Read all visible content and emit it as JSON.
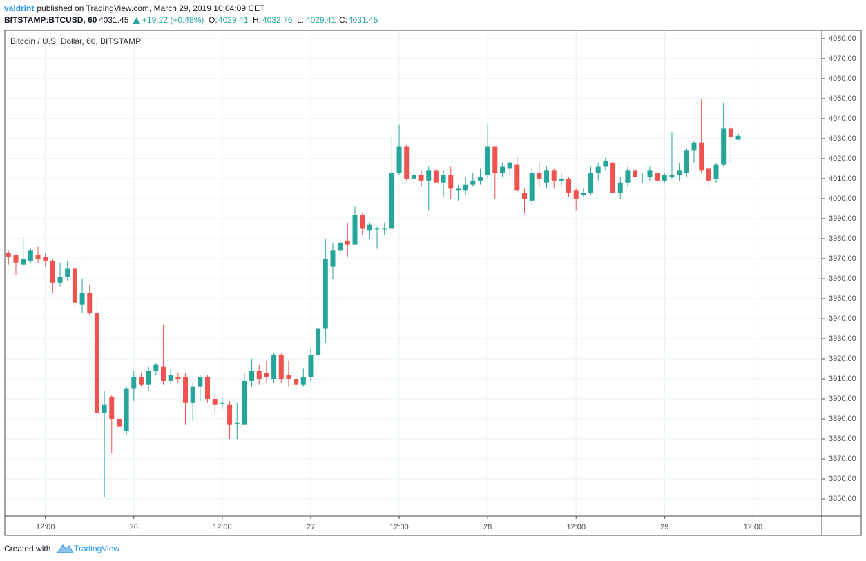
{
  "header": {
    "user": "valdrint",
    "published": "published on TradingView.com, March 29, 2019 10:04:09 CET",
    "symbol": "BITSTAMP:BTCUSD, 60",
    "last": "4031.45",
    "change": "+19.22 (+0.48%)",
    "open_label": "O:",
    "open": "4029.41",
    "high_label": "H:",
    "high": "4032.76",
    "low_label": "L:",
    "low": "4029.41",
    "close_label": "C:",
    "close": "4031.45"
  },
  "footer": {
    "created": "Created with",
    "brand": "TradingView"
  },
  "chart_data": {
    "type": "candlestick",
    "title": "Bitcoin / U.S. Dollar, 60, BITSTAMP",
    "up_color": "#26a69a",
    "down_color": "#ef5350",
    "grid": true,
    "x": [
      "25 07:00",
      "25 08:00",
      "25 09:00",
      "25 10:00",
      "25 11:00",
      "25 12:00",
      "25 13:00",
      "25 14:00",
      "25 15:00",
      "25 16:00",
      "25 17:00",
      "25 18:00",
      "25 19:00",
      "25 20:00",
      "25 21:00",
      "25 22:00",
      "25 23:00",
      "26 00:00",
      "26 01:00",
      "26 02:00",
      "26 03:00",
      "26 04:00",
      "26 05:00",
      "26 06:00",
      "26 07:00",
      "26 08:00",
      "26 09:00",
      "26 10:00",
      "26 11:00",
      "26 12:00",
      "26 13:00",
      "26 14:00",
      "26 15:00",
      "26 16:00",
      "26 17:00",
      "26 18:00",
      "26 19:00",
      "26 20:00",
      "26 21:00",
      "26 22:00",
      "26 23:00",
      "27 00:00",
      "27 01:00",
      "27 02:00",
      "27 03:00",
      "27 04:00",
      "27 05:00",
      "27 06:00",
      "27 07:00",
      "27 08:00",
      "27 09:00",
      "27 10:00",
      "27 11:00",
      "27 12:00",
      "27 13:00",
      "27 14:00",
      "27 15:00",
      "27 16:00",
      "27 17:00",
      "27 18:00",
      "27 19:00",
      "27 20:00",
      "27 21:00",
      "27 22:00",
      "27 23:00",
      "28 00:00",
      "28 01:00",
      "28 02:00",
      "28 03:00",
      "28 04:00",
      "28 05:00",
      "28 06:00",
      "28 07:00",
      "28 08:00",
      "28 09:00",
      "28 10:00",
      "28 11:00",
      "28 12:00",
      "28 13:00",
      "28 14:00",
      "28 15:00",
      "28 16:00",
      "28 17:00",
      "28 18:00",
      "28 19:00",
      "28 20:00",
      "28 21:00",
      "28 22:00",
      "28 23:00",
      "29 00:00",
      "29 01:00",
      "29 02:00",
      "29 03:00",
      "29 04:00",
      "29 05:00",
      "29 06:00",
      "29 07:00",
      "29 08:00",
      "29 09:00",
      "29 10:00"
    ],
    "open": [
      3973,
      3972,
      3967,
      3969,
      3972,
      3971,
      3969,
      3958,
      3961,
      3965,
      3947,
      3953,
      3943,
      3893,
      3901,
      3890,
      3884,
      3905,
      3911,
      3907,
      3914,
      3916,
      3909,
      3911,
      3911,
      3898,
      3906,
      3911,
      3900,
      3898,
      3897,
      3888,
      3887,
      3909,
      3914,
      3913,
      3910,
      3922,
      3912,
      3910,
      3907,
      3911,
      3922,
      3935,
      3966,
      3974,
      3979,
      3977,
      3992,
      3984,
      3985,
      3985,
      3985,
      4013,
      4026,
      4010,
      4012,
      4009,
      4014,
      4008,
      4012,
      4004,
      4004,
      4007,
      4009,
      4012,
      4026,
      4013,
      4015,
      4017,
      4003,
      3999,
      4013,
      4008,
      4014,
      4009,
      4010,
      4004,
      4002,
      4003,
      4013,
      4016,
      4018,
      4003,
      4008,
      4014,
      4011,
      4011,
      4013,
      4009,
      4011,
      4012,
      4013,
      4024,
      4028,
      4015,
      4010,
      4017,
      4035,
      4029.41
    ],
    "high": [
      3974,
      3972,
      3981,
      3975,
      3976,
      3973,
      3970,
      3968,
      3969,
      3969,
      3960,
      3957,
      3950,
      3904,
      3902,
      3891,
      3906,
      3914,
      3913,
      3916,
      3918,
      3937,
      3915,
      3913,
      3913,
      3908,
      3912,
      3912,
      3902,
      3901,
      3899,
      3898,
      3913,
      3920,
      3917,
      3919,
      3923,
      3923,
      3919,
      3912,
      3915,
      3925,
      3935,
      3980,
      3978,
      3980,
      3988,
      3996,
      3993,
      3988,
      3986,
      3988,
      4031,
      4037,
      4027,
      4015,
      4014,
      4016,
      4016,
      4014,
      4016,
      4007,
      4011,
      4013,
      4015,
      4037,
      4026,
      4018,
      4019,
      4021,
      4005,
      4015,
      4018,
      4016,
      4015,
      4013,
      4011,
      4005,
      4005,
      4016,
      4018,
      4021,
      4018,
      4011,
      4016,
      4015,
      4013,
      4016,
      4015,
      4013,
      4033,
      4018,
      4025,
      4029,
      4050,
      4016,
      4018,
      4048,
      4037,
      4032.76
    ],
    "low": [
      3967,
      3962,
      3966,
      3968,
      3968,
      3966,
      3953,
      3956,
      3959,
      3946,
      3943,
      3942,
      3884,
      3851,
      3873,
      3880,
      3882,
      3899,
      3906,
      3904,
      3912,
      3907,
      3907,
      3908,
      3887,
      3889,
      3899,
      3898,
      3893,
      3895,
      3880,
      3880,
      3887,
      3906,
      3907,
      3908,
      3908,
      3908,
      3906,
      3905,
      3906,
      3909,
      3918,
      3928,
      3960,
      3972,
      3971,
      3977,
      3982,
      3980,
      3975,
      3982,
      3985,
      4012,
      4009,
      4008,
      4006,
      3994,
      4005,
      4001,
      4000,
      3999,
      4002,
      4006,
      4007,
      4010,
      4000,
      4011,
      4012,
      4003,
      3993,
      3997,
      4006,
      4005,
      4005,
      4006,
      4001,
      3994,
      4001,
      4002,
      4009,
      4014,
      4002,
      4000,
      4006,
      4008,
      4008,
      4009,
      4007,
      4008,
      4010,
      4009,
      4011,
      4018,
      4013,
      4005,
      4008,
      4016,
      4017,
      4029.41
    ],
    "close": [
      3971,
      3968,
      3970,
      3974,
      3970,
      3969,
      3958,
      3961,
      3965,
      3948,
      3953,
      3943,
      3893,
      3897,
      3890,
      3886,
      3905,
      3911,
      3907,
      3914,
      3917,
      3909,
      3912,
      3910,
      3898,
      3906,
      3911,
      3900,
      3897,
      3898,
      3887,
      3888,
      3909,
      3914,
      3910,
      3911,
      3922,
      3910,
      3910,
      3907,
      3911,
      3922,
      3935,
      3970,
      3974,
      3978,
      3977,
      3992,
      3985,
      3987,
      3985,
      3985,
      4013,
      4026,
      4010,
      4012,
      4009,
      4014,
      4008,
      4012,
      4005,
      4005,
      4007,
      4009,
      4011,
      4026,
      4013,
      4016,
      4018,
      4004,
      4000,
      4013,
      4010,
      4014,
      4009,
      4010,
      4003,
      4000,
      4003,
      4013,
      4016,
      4019,
      4003,
      4008,
      4014,
      4011,
      4011,
      4014,
      4009,
      4012,
      4012,
      4014,
      4024,
      4028,
      4014,
      4009,
      4017,
      4035,
      4031,
      4031.45
    ],
    "xlim": [
      "25 06:30",
      "29 21:20"
    ],
    "xticks": [
      {
        "value": "25 12:00",
        "label": "12:00"
      },
      {
        "value": "26 00:00",
        "label": "26"
      },
      {
        "value": "26 12:00",
        "label": "12:00"
      },
      {
        "value": "27 00:00",
        "label": "27"
      },
      {
        "value": "27 12:00",
        "label": "12:00"
      },
      {
        "value": "28 00:00",
        "label": "28"
      },
      {
        "value": "28 12:00",
        "label": "12:00"
      },
      {
        "value": "29 00:00",
        "label": "29"
      },
      {
        "value": "29 12:00",
        "label": "12:00"
      }
    ],
    "ylim": [
      3841.4,
      4084.1
    ],
    "yticks": [
      {
        "value": 3850,
        "label": "3850.00"
      },
      {
        "value": 3860,
        "label": "3860.00"
      },
      {
        "value": 3870,
        "label": "3870.00"
      },
      {
        "value": 3880,
        "label": "3880.00"
      },
      {
        "value": 3890,
        "label": "3890.00"
      },
      {
        "value": 3900,
        "label": "3900.00"
      },
      {
        "value": 3910,
        "label": "3910.00"
      },
      {
        "value": 3920,
        "label": "3920.00"
      },
      {
        "value": 3930,
        "label": "3930.00"
      },
      {
        "value": 3940,
        "label": "3940.00"
      },
      {
        "value": 3950,
        "label": "3950.00"
      },
      {
        "value": 3960,
        "label": "3960.00"
      },
      {
        "value": 3970,
        "label": "3970.00"
      },
      {
        "value": 3980,
        "label": "3980.00"
      },
      {
        "value": 3990,
        "label": "3990.00"
      },
      {
        "value": 4000,
        "label": "4000.00"
      },
      {
        "value": 4010,
        "label": "4010.00"
      },
      {
        "value": 4020,
        "label": "4020.00"
      },
      {
        "value": 4030,
        "label": "4030.00"
      },
      {
        "value": 4040,
        "label": "4040.00"
      },
      {
        "value": 4050,
        "label": "4050.00"
      },
      {
        "value": 4060,
        "label": "4060.00"
      },
      {
        "value": 4070,
        "label": "4070.00"
      },
      {
        "value": 4080,
        "label": "4080.00"
      }
    ]
  }
}
